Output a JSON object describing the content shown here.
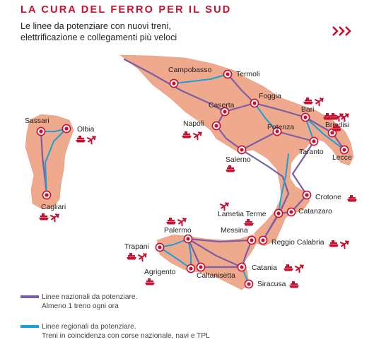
{
  "title": "LA CURA DEL FERRO PER IL SUD",
  "subtitle_line1": "Le linee da potenziare con nuovi treni,",
  "subtitle_line2": "elettrificazione e collegamenti più veloci",
  "colors": {
    "title": "#c8102e",
    "land": "#efa98d",
    "national_line": "#7b5ea7",
    "regional_line": "#1a9fd6",
    "station": "#c8102e",
    "icons": "#c8102e"
  },
  "cities": [
    {
      "name": "Campobasso",
      "icons": []
    },
    {
      "name": "Termoli",
      "icons": []
    },
    {
      "name": "Foggia",
      "icons": [
        "ship-icon",
        "plane-icon"
      ]
    },
    {
      "name": "Caserta",
      "icons": []
    },
    {
      "name": "Napoli",
      "icons": [
        "ship-icon",
        "plane-icon"
      ]
    },
    {
      "name": "Bari",
      "icons": [
        "ship-icon",
        "plane-icon"
      ]
    },
    {
      "name": "Brindisi",
      "icons": [
        "ship-icon",
        "plane-icon"
      ]
    },
    {
      "name": "Potenza",
      "icons": []
    },
    {
      "name": "Taranto",
      "icons": [
        "ship-icon"
      ]
    },
    {
      "name": "Lecce",
      "icons": []
    },
    {
      "name": "Salerno",
      "icons": [
        "ship-icon"
      ]
    },
    {
      "name": "Sassari",
      "icons": []
    },
    {
      "name": "Olbia",
      "icons": [
        "ship-icon",
        "plane-icon"
      ]
    },
    {
      "name": "Cagliari",
      "icons": [
        "ship-icon",
        "plane-icon"
      ]
    },
    {
      "name": "Crotone",
      "icons": [
        "ship-icon"
      ]
    },
    {
      "name": "Lametia Terme",
      "icons": [
        "plane-icon"
      ]
    },
    {
      "name": "Catanzaro",
      "icons": []
    },
    {
      "name": "Messina",
      "icons": [
        "ship-icon"
      ]
    },
    {
      "name": "Reggio Calabria",
      "icons": [
        "ship-icon",
        "plane-icon"
      ]
    },
    {
      "name": "Palermo",
      "icons": [
        "ship-icon",
        "plane-icon"
      ]
    },
    {
      "name": "Trapani",
      "icons": [
        "ship-icon",
        "plane-icon"
      ]
    },
    {
      "name": "Agrigento",
      "icons": [
        "ship-icon"
      ]
    },
    {
      "name": "Caltanisetta",
      "icons": []
    },
    {
      "name": "Catania",
      "icons": [
        "ship-icon",
        "plane-icon"
      ]
    },
    {
      "name": "Siracusa",
      "icons": [
        "ship-icon"
      ]
    }
  ],
  "legend": {
    "national_line1": "Linee nazionali da potenziare.",
    "national_line2": "Almeno 1 treno ogni ora",
    "regional_line1": "Linee regionali da potenziare.",
    "regional_line2": "Treni in coincidenza con corse nazionale, navi e TPL"
  }
}
